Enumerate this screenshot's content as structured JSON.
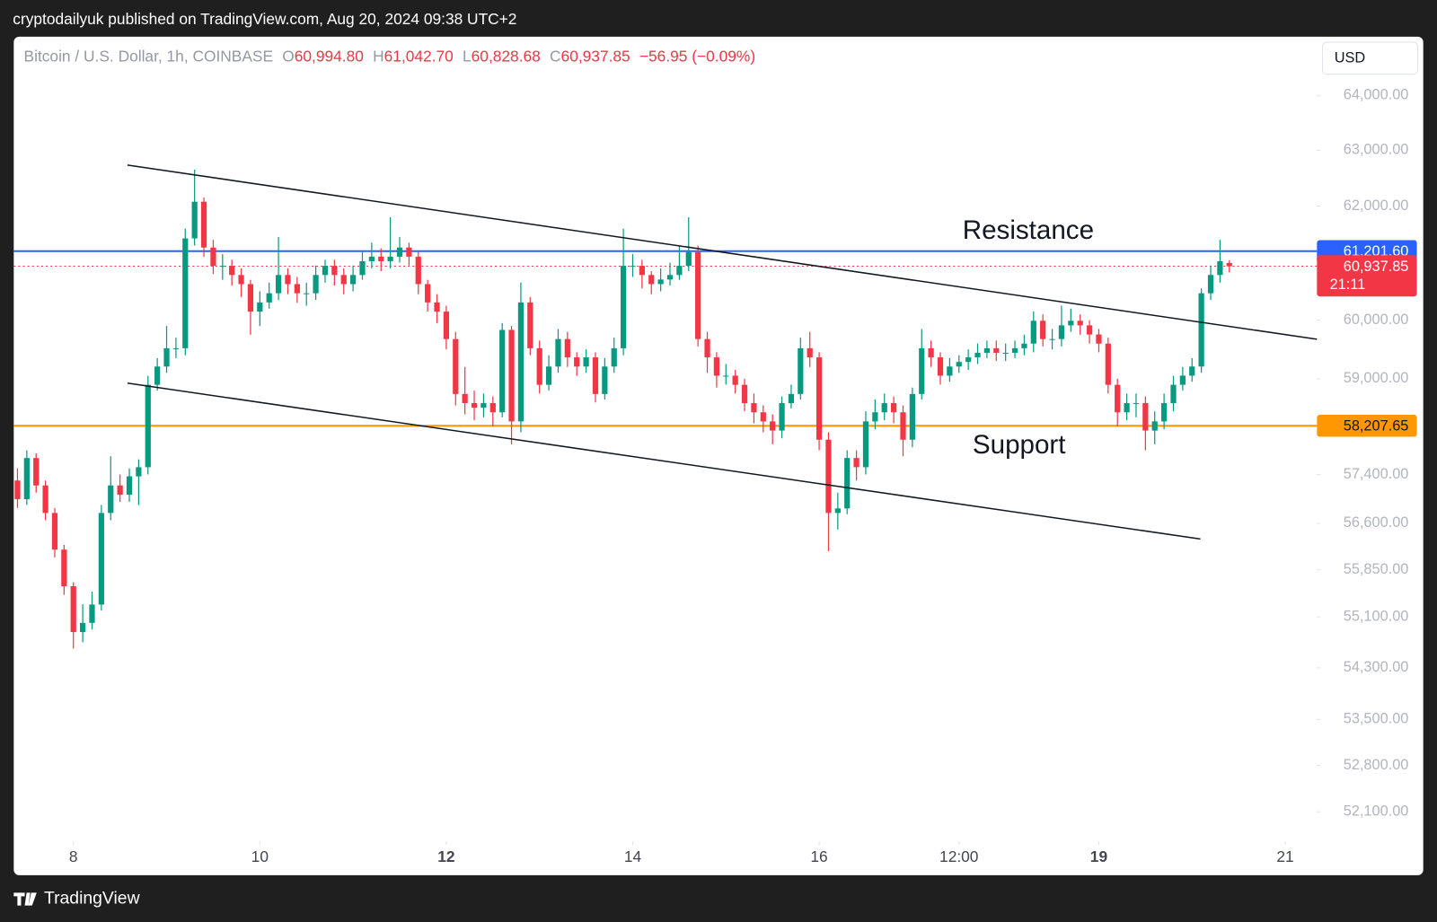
{
  "header": {
    "title": "cryptodailyuk published on TradingView.com, Aug 20, 2024 09:38 UTC+2",
    "currency": "USD",
    "footer": "TradingView"
  },
  "chart_data": {
    "type": "candlestick",
    "legend": {
      "symbol": "Bitcoin / U.S. Dollar, 1h, COINBASE",
      "ohlc": [
        {
          "key": "O",
          "value": "60,994.80"
        },
        {
          "key": "H",
          "value": "61,042.70"
        },
        {
          "key": "L",
          "value": "60,828.68"
        },
        {
          "key": "C",
          "value": "60,937.85"
        }
      ],
      "change": "−56.95 (−0.09%)"
    },
    "up_color": "#089981",
    "down_color": "#f23645",
    "log": true,
    "grid": false,
    "xlim": [
      7.36,
      21.34
    ],
    "ylim": [
      51660,
      65090
    ],
    "xticks": [
      8,
      10,
      12,
      14,
      16,
      {
        "value": 17.5,
        "label": "12:00"
      },
      19,
      21
    ],
    "xticks_bold": [
      12,
      19
    ],
    "yticks": [
      {
        "value": 64000,
        "label": "64,000.00"
      },
      {
        "value": 63000,
        "label": "63,000.00"
      },
      {
        "value": 62000,
        "label": "62,000.00"
      },
      {
        "value": 60000,
        "label": "60,000.00"
      },
      {
        "value": 59000,
        "label": "59,000.00"
      },
      {
        "value": 57400,
        "label": "57,400.00"
      },
      {
        "value": 56600,
        "label": "56,600.00"
      },
      {
        "value": 55850,
        "label": "55,850.00"
      },
      {
        "value": 55100,
        "label": "55,100.00"
      },
      {
        "value": 54300,
        "label": "54,300.00"
      },
      {
        "value": 53500,
        "label": "53,500.00"
      },
      {
        "value": 52800,
        "label": "52,800.00"
      },
      {
        "value": 52100,
        "label": "52,100.00"
      }
    ],
    "x": [
      7.4,
      7.5,
      7.6,
      7.7,
      7.8,
      7.9,
      8.0,
      8.1,
      8.2,
      8.3,
      8.4,
      8.5,
      8.6,
      8.7,
      8.8,
      8.9,
      9.0,
      9.1,
      9.2,
      9.3,
      9.4,
      9.5,
      9.6,
      9.7,
      9.8,
      9.9,
      10.0,
      10.1,
      10.2,
      10.3,
      10.4,
      10.5,
      10.6,
      10.7,
      10.8,
      10.9,
      11.0,
      11.1,
      11.2,
      11.3,
      11.4,
      11.5,
      11.6,
      11.7,
      11.8,
      11.9,
      12.0,
      12.1,
      12.2,
      12.3,
      12.4,
      12.5,
      12.6,
      12.7,
      12.8,
      12.9,
      13.0,
      13.1,
      13.2,
      13.3,
      13.4,
      13.5,
      13.6,
      13.7,
      13.8,
      13.9,
      14.0,
      14.1,
      14.2,
      14.3,
      14.4,
      14.5,
      14.6,
      14.7,
      14.8,
      14.9,
      15.0,
      15.1,
      15.2,
      15.3,
      15.4,
      15.5,
      15.6,
      15.7,
      15.8,
      15.9,
      16.0,
      16.1,
      16.2,
      16.3,
      16.4,
      16.5,
      16.6,
      16.7,
      16.8,
      16.9,
      17.0,
      17.1,
      17.2,
      17.3,
      17.4,
      17.5,
      17.6,
      17.7,
      17.8,
      17.9,
      18.0,
      18.1,
      18.2,
      18.3,
      18.4,
      18.5,
      18.6,
      18.7,
      18.8,
      18.9,
      19.0,
      19.1,
      19.2,
      19.3,
      19.4,
      19.5,
      19.6,
      19.7,
      19.8,
      19.9,
      20.0,
      20.1,
      20.2,
      20.3,
      20.4
    ],
    "open": [
      57300,
      56993,
      57672,
      57219,
      56769,
      56175,
      55587,
      54860,
      55005,
      55295,
      56769,
      57219,
      57068,
      57369,
      57520,
      58897,
      59207,
      59519,
      59519,
      61426,
      62076,
      61265,
      60944,
      60944,
      60784,
      60625,
      60148,
      60307,
      60466,
      60784,
      60625,
      60466,
      60466,
      60784,
      60944,
      60784,
      60625,
      60784,
      61025,
      61105,
      61025,
      61105,
      61265,
      61105,
      60625,
      60307,
      60148,
      59676,
      58742,
      58588,
      58511,
      58588,
      58434,
      59833,
      58281,
      60307,
      59519,
      58897,
      59207,
      59676,
      59363,
      59207,
      59363,
      58742,
      59207,
      59519,
      60944,
      60944,
      60784,
      60625,
      60705,
      60784,
      60944,
      61185,
      59676,
      59363,
      59052,
      59052,
      58897,
      58588,
      58434,
      58281,
      58128,
      58588,
      58742,
      59519,
      59363,
      57976,
      56769,
      56843,
      57672,
      57520,
      58281,
      58434,
      58588,
      58434,
      57976,
      58742,
      59519,
      59363,
      59052,
      59207,
      59285,
      59363,
      59441,
      59519,
      59441,
      59441,
      59519,
      59598,
      59990,
      59676,
      59676,
      59911,
      59990,
      59911,
      59754,
      59598,
      58897,
      58434,
      58588,
      58588,
      58128,
      58281,
      58588,
      58897,
      59052,
      59207,
      60466,
      60784,
      60994.8
    ],
    "high": [
      57500,
      57800,
      57750,
      57300,
      56850,
      56250,
      55650,
      55300,
      55500,
      56900,
      57700,
      57400,
      57500,
      57650,
      59050,
      59350,
      59900,
      59700,
      61600,
      62650,
      62150,
      61400,
      61150,
      61050,
      60900,
      60700,
      60500,
      60650,
      61450,
      60900,
      60750,
      60650,
      60950,
      61050,
      61050,
      60900,
      60950,
      61200,
      61350,
      61250,
      61800,
      61450,
      61350,
      61200,
      60700,
      60450,
      60250,
      59800,
      59200,
      58800,
      58750,
      58700,
      59950,
      59900,
      60650,
      60400,
      59650,
      59400,
      59850,
      59800,
      59450,
      59500,
      59450,
      59350,
      59700,
      61600,
      61150,
      61050,
      60850,
      60900,
      61000,
      61300,
      61800,
      61300,
      59800,
      59450,
      59250,
      59150,
      59000,
      58750,
      58550,
      58400,
      58700,
      58900,
      59700,
      59800,
      59450,
      58100,
      57100,
      57800,
      57800,
      58450,
      58650,
      58750,
      58700,
      58550,
      58850,
      59850,
      59650,
      59450,
      59350,
      59400,
      59500,
      59600,
      59650,
      59650,
      59600,
      59650,
      59750,
      60150,
      60100,
      59850,
      60250,
      60200,
      60100,
      60000,
      59850,
      59700,
      59000,
      58750,
      58750,
      58700,
      58450,
      58750,
      59050,
      59200,
      59350,
      60550,
      60950,
      61400,
      61042.7
    ],
    "low": [
      56850,
      56900,
      57100,
      56650,
      56050,
      55450,
      54600,
      54700,
      54900,
      55200,
      56650,
      56950,
      56950,
      56900,
      57400,
      58800,
      59100,
      59350,
      59400,
      61300,
      61100,
      60800,
      60700,
      60600,
      60400,
      59750,
      59900,
      60200,
      60350,
      60450,
      60300,
      60250,
      60350,
      60650,
      60600,
      60450,
      60500,
      60700,
      60900,
      60850,
      60900,
      61000,
      60950,
      60450,
      60150,
      59950,
      59500,
      58550,
      58400,
      58300,
      58350,
      58200,
      58350,
      57900,
      58100,
      59400,
      58750,
      58800,
      59100,
      59200,
      59050,
      59100,
      58600,
      58650,
      59100,
      59400,
      60750,
      60550,
      60450,
      60500,
      60600,
      60700,
      60850,
      59550,
      59100,
      58850,
      58900,
      58750,
      58450,
      58250,
      58100,
      57900,
      58000,
      58500,
      58650,
      59200,
      57800,
      56150,
      56500,
      56750,
      57300,
      57400,
      58150,
      58300,
      58250,
      57700,
      57850,
      58650,
      59200,
      58900,
      58950,
      59100,
      59150,
      59250,
      59350,
      59300,
      59300,
      59350,
      59400,
      59450,
      59550,
      59500,
      59550,
      59800,
      59750,
      59600,
      59450,
      58750,
      58200,
      58300,
      58350,
      57800,
      57900,
      58150,
      58450,
      58800,
      58950,
      59100,
      60350,
      60650,
      60828.68
    ],
    "close": [
      56993,
      57672,
      57219,
      56769,
      56175,
      55587,
      54860,
      55005,
      55295,
      56769,
      57219,
      57068,
      57369,
      57520,
      58897,
      59207,
      59519,
      59519,
      61426,
      62076,
      61265,
      60944,
      60944,
      60784,
      60625,
      60148,
      60307,
      60466,
      60784,
      60625,
      60466,
      60466,
      60784,
      60944,
      60784,
      60625,
      60784,
      61025,
      61105,
      61025,
      61105,
      61265,
      61105,
      60625,
      60307,
      60148,
      59676,
      58742,
      58588,
      58511,
      58588,
      58434,
      59833,
      58281,
      60307,
      59519,
      58897,
      59207,
      59676,
      59363,
      59207,
      59363,
      58742,
      59207,
      59519,
      60944,
      60944,
      60784,
      60625,
      60705,
      60784,
      60944,
      61185,
      59676,
      59363,
      59052,
      59052,
      58897,
      58588,
      58434,
      58281,
      58128,
      58588,
      58742,
      59519,
      59363,
      57976,
      56769,
      56843,
      57672,
      57520,
      58281,
      58434,
      58588,
      58434,
      57976,
      58742,
      59519,
      59363,
      59052,
      59207,
      59285,
      59363,
      59441,
      59519,
      59441,
      59441,
      59519,
      59598,
      59990,
      59676,
      59676,
      59911,
      59990,
      59911,
      59754,
      59598,
      58897,
      58434,
      58588,
      58588,
      58128,
      58281,
      58588,
      58897,
      59052,
      59207,
      60466,
      60784,
      61025,
      60937.85
    ],
    "hlines": [
      {
        "value": 61201.6,
        "label": "61,201.60",
        "color": "#2962ff"
      },
      {
        "value": 58207.65,
        "label": "58,207.65",
        "color": "#ff9800"
      }
    ],
    "last_price": {
      "value": 60937.85,
      "label": "60,937.85",
      "countdown": "21:11",
      "color": "#f23645"
    },
    "trendlines": [
      {
        "x": [
          8.58,
          21.34
        ],
        "y": [
          62733,
          59673
        ]
      },
      {
        "x": [
          8.58,
          20.09
        ],
        "y": [
          58925,
          56346
        ]
      }
    ],
    "annotations": [
      "Resistance",
      "Support"
    ]
  }
}
